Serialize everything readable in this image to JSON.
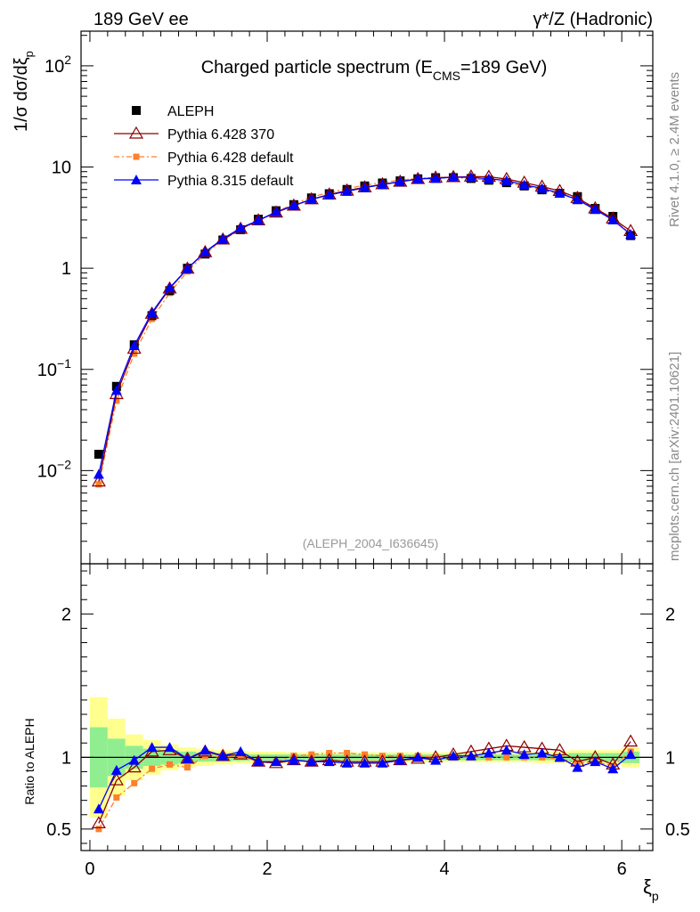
{
  "header": {
    "left": "189 GeV ee",
    "right": "γ*/Z (Hadronic)"
  },
  "side_labels": {
    "rivet": "Rivet 4.1.0, ≥ 2.4M events",
    "mcplots": "mcplots.cern.ch [arXiv:2401.10621]"
  },
  "colors": {
    "aleph": "#000000",
    "py6_370": "#8b0000",
    "py6_default": "#ff7f2a",
    "py8_default": "#0000ff",
    "band_inner": "#90ee90",
    "band_outer": "#ffff90"
  },
  "chart_data": [
    {
      "type": "line",
      "title": "Charged particle spectrum (E",
      "title_sub": "CMS",
      "title_tail": "=189 GeV)",
      "ylabel_prefix": "1/σ   dσ/dξ",
      "ylabel_sub": "p",
      "yscale": "log",
      "ylim": [
        0.0012,
        220
      ],
      "xlim": [
        -0.1,
        6.35
      ],
      "ytick_labels": {
        "major": [
          {
            "v": 0.01,
            "base": "10",
            "exp": "−2"
          },
          {
            "v": 0.1,
            "base": "10",
            "exp": "−1"
          },
          {
            "v": 1,
            "base": "1",
            "exp": ""
          },
          {
            "v": 10,
            "base": "10",
            "exp": ""
          },
          {
            "v": 100,
            "base": "10",
            "exp": "2"
          }
        ]
      },
      "watermark": "(ALEPH_2004_I636645)",
      "legend": [
        {
          "key": "aleph",
          "label": "ALEPH"
        },
        {
          "key": "py6_370",
          "label": "Pythia 6.428 370"
        },
        {
          "key": "py6_default",
          "label": "Pythia 6.428 default"
        },
        {
          "key": "py8_default",
          "label": "Pythia 8.315 default"
        }
      ],
      "x": [
        0.1,
        0.3,
        0.5,
        0.7,
        0.9,
        1.1,
        1.3,
        1.5,
        1.7,
        1.9,
        2.1,
        2.3,
        2.5,
        2.7,
        2.9,
        3.1,
        3.3,
        3.5,
        3.7,
        3.9,
        4.1,
        4.3,
        4.5,
        4.7,
        4.9,
        5.1,
        5.3,
        5.5,
        5.7,
        5.9,
        6.1
      ],
      "series": [
        {
          "key": "aleph",
          "name": "ALEPH",
          "values": [
            0.0145,
            0.068,
            0.175,
            0.34,
            0.6,
            1.0,
            1.38,
            1.9,
            2.4,
            3.05,
            3.7,
            4.25,
            4.95,
            5.45,
            6.0,
            6.5,
            6.95,
            7.3,
            7.65,
            7.85,
            7.85,
            7.7,
            7.4,
            7.0,
            6.5,
            5.95,
            5.5,
            5.1,
            3.9,
            3.25,
            2.1
          ]
        },
        {
          "key": "py6_370",
          "name": "Pythia 6.428 370",
          "values": [
            0.0078,
            0.057,
            0.16,
            0.355,
            0.63,
            0.99,
            1.44,
            1.92,
            2.45,
            2.97,
            3.55,
            4.15,
            4.8,
            5.35,
            5.85,
            6.3,
            6.75,
            7.15,
            7.6,
            7.85,
            7.95,
            8.05,
            8.0,
            7.6,
            7.0,
            6.4,
            5.8,
            4.95,
            3.9,
            3.1,
            2.33
          ]
        },
        {
          "key": "py6_default",
          "name": "Pythia 6.428 default",
          "values": [
            0.0073,
            0.049,
            0.143,
            0.315,
            0.57,
            0.93,
            1.39,
            1.9,
            2.42,
            2.97,
            3.6,
            4.3,
            5.05,
            5.6,
            6.15,
            6.6,
            7.05,
            7.4,
            7.75,
            7.85,
            7.85,
            7.7,
            7.4,
            7.0,
            6.5,
            5.95,
            5.45,
            4.9,
            3.8,
            3.05,
            2.18
          ]
        },
        {
          "key": "py8_default",
          "name": "Pythia 8.315 default",
          "values": [
            0.0092,
            0.062,
            0.172,
            0.365,
            0.64,
            0.99,
            1.45,
            1.95,
            2.5,
            2.97,
            3.6,
            4.15,
            4.8,
            5.3,
            5.75,
            6.25,
            6.7,
            7.15,
            7.65,
            7.7,
            7.95,
            7.9,
            7.65,
            7.35,
            6.65,
            6.15,
            5.5,
            4.75,
            3.8,
            3.0,
            2.16
          ]
        }
      ]
    },
    {
      "type": "line",
      "ylabel": "Ratio to ALEPH",
      "xlabel": "ξ",
      "xlabel_sub": "p",
      "ylim": [
        0.35,
        2.35
      ],
      "xlim": [
        -0.1,
        6.35
      ],
      "xtick_labels": [
        "0",
        "2",
        "4",
        "6"
      ],
      "xtick_values": [
        0,
        2,
        4,
        6
      ],
      "ytick_labels": [
        "0.5",
        "1",
        "2"
      ],
      "ytick_values": [
        0.5,
        1,
        2
      ],
      "x": [
        0.1,
        0.3,
        0.5,
        0.7,
        0.9,
        1.1,
        1.3,
        1.5,
        1.7,
        1.9,
        2.1,
        2.3,
        2.5,
        2.7,
        2.9,
        3.1,
        3.3,
        3.5,
        3.7,
        3.9,
        4.1,
        4.3,
        4.5,
        4.7,
        4.9,
        5.1,
        5.3,
        5.5,
        5.7,
        5.9,
        6.1
      ],
      "band_edges": [
        0,
        0.2,
        0.4,
        0.6,
        0.8,
        1.0,
        1.2,
        1.4,
        1.6,
        1.8,
        2.0,
        2.2,
        2.4,
        2.6,
        2.8,
        3.0,
        3.2,
        3.4,
        3.6,
        3.8,
        4.0,
        4.2,
        4.4,
        4.6,
        4.8,
        5.0,
        5.2,
        5.4,
        5.6,
        5.8,
        6.0,
        6.2
      ],
      "band_inner": [
        0.21,
        0.13,
        0.08,
        0.06,
        0.05,
        0.04,
        0.03,
        0.03,
        0.025,
        0.02,
        0.02,
        0.02,
        0.02,
        0.02,
        0.02,
        0.02,
        0.02,
        0.02,
        0.02,
        0.02,
        0.02,
        0.02,
        0.02,
        0.02,
        0.02,
        0.02,
        0.02,
        0.03,
        0.03,
        0.03,
        0.04
      ],
      "band_outer": [
        0.42,
        0.27,
        0.16,
        0.12,
        0.09,
        0.07,
        0.06,
        0.05,
        0.045,
        0.04,
        0.04,
        0.035,
        0.035,
        0.035,
        0.035,
        0.035,
        0.035,
        0.035,
        0.035,
        0.035,
        0.035,
        0.035,
        0.035,
        0.035,
        0.035,
        0.04,
        0.04,
        0.05,
        0.05,
        0.05,
        0.07
      ],
      "series": [
        {
          "key": "py6_370",
          "name": "Pythia 6.428 370",
          "values": [
            0.54,
            0.84,
            0.93,
            1.04,
            1.05,
            0.99,
            1.04,
            1.01,
            1.02,
            0.97,
            0.96,
            0.98,
            0.97,
            0.98,
            0.97,
            0.97,
            0.97,
            0.98,
            0.99,
            1.0,
            1.02,
            1.04,
            1.06,
            1.08,
            1.07,
            1.06,
            1.05,
            0.97,
            1.0,
            0.95,
            1.11
          ]
        },
        {
          "key": "py6_default",
          "name": "Pythia 6.428 default",
          "values": [
            0.5,
            0.72,
            0.82,
            0.92,
            0.95,
            0.93,
            1.01,
            1.0,
            1.01,
            0.97,
            0.97,
            1.01,
            1.02,
            1.03,
            1.03,
            1.02,
            1.01,
            1.01,
            1.01,
            1.0,
            1.0,
            1.0,
            1.0,
            1.0,
            1.0,
            1.0,
            0.99,
            0.96,
            0.97,
            0.94,
            1.04
          ]
        },
        {
          "key": "py8_default",
          "name": "Pythia 8.315 default",
          "values": [
            0.64,
            0.91,
            0.98,
            1.07,
            1.07,
            0.99,
            1.05,
            1.01,
            1.04,
            0.97,
            0.97,
            0.98,
            0.97,
            0.97,
            0.96,
            0.96,
            0.96,
            0.98,
            1.0,
            0.98,
            1.01,
            1.01,
            1.03,
            1.05,
            1.02,
            1.03,
            1.0,
            0.93,
            0.97,
            0.92,
            1.02
          ]
        }
      ]
    }
  ]
}
